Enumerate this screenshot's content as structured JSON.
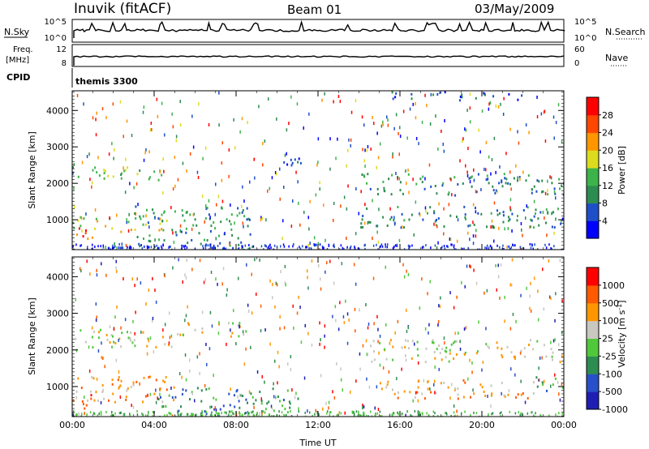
{
  "header": {
    "station": "Inuvik (fitACF)",
    "beam": "Beam 01",
    "date": "03/May/2009"
  },
  "panels": {
    "nsky": {
      "label": "N.Sky",
      "left_ticks": [
        "10^5",
        "10^0"
      ],
      "right_ticks": [
        "10^5",
        "10^0"
      ],
      "right_label": "N.Search"
    },
    "freq": {
      "label_line1": "Freq.",
      "label_line2": "[MHz]",
      "left_ticks": [
        "12",
        "8"
      ],
      "right_ticks": [
        "60",
        "0"
      ],
      "right_label": "Nave"
    },
    "cpid": {
      "label": "CPID",
      "value": "themis 3300"
    }
  },
  "chart_data": [
    {
      "type": "heatmap",
      "name": "power",
      "ylabel": "Slant Range [km]",
      "xlabel": "",
      "x_ticks": [
        "00:00",
        "04:00",
        "08:00",
        "12:00",
        "16:00",
        "20:00",
        "00:00"
      ],
      "xlim_hours": [
        0,
        24
      ],
      "y_ticks": [
        1000,
        2000,
        3000,
        4000
      ],
      "ylim_km": [
        180,
        4540
      ],
      "colorbar": {
        "label": "Power [dB]",
        "ticks": [
          "28",
          "24",
          "20",
          "16",
          "12",
          "8",
          "4"
        ],
        "colors": [
          "#0000ff",
          "#1e4fc8",
          "#2d8c50",
          "#3cb44b",
          "#dcdc1e",
          "#ff9600",
          "#ff4600",
          "#ff0000"
        ]
      },
      "regions": [
        {
          "t0": 0.0,
          "t1": 4.6,
          "r0": 2100,
          "r1": 2500,
          "level": 3
        },
        {
          "t0": 0.0,
          "t1": 4.8,
          "r0": 700,
          "r1": 1100,
          "level": 4
        },
        {
          "t0": 0.0,
          "t1": 1.0,
          "r0": 300,
          "r1": 800,
          "level": 6
        },
        {
          "t0": 3.0,
          "t1": 8.8,
          "r0": 200,
          "r1": 1400,
          "level": 2
        },
        {
          "t0": 10.0,
          "t1": 11.2,
          "r0": 2300,
          "r1": 2800,
          "level": 1
        },
        {
          "t0": 14.0,
          "t1": 24.0,
          "r0": 1700,
          "r1": 2300,
          "level": 2
        },
        {
          "t0": 14.0,
          "t1": 24.0,
          "r0": 800,
          "r1": 1400,
          "level": 2
        },
        {
          "t0": 15.5,
          "t1": 22.0,
          "r0": 4300,
          "r1": 4540,
          "level": 1
        }
      ]
    },
    {
      "type": "heatmap",
      "name": "velocity",
      "ylabel": "Slant Range [km]",
      "xlabel": "Time UT",
      "x_ticks": [
        "00:00",
        "04:00",
        "08:00",
        "12:00",
        "16:00",
        "20:00",
        "00:00"
      ],
      "xlim_hours": [
        0,
        24
      ],
      "y_ticks": [
        1000,
        2000,
        3000,
        4000
      ],
      "ylim_km": [
        180,
        4540
      ],
      "colorbar": {
        "label": "Velocity [m s",
        "label_sup": "-1",
        "label_end": "]",
        "ticks": [
          "1000",
          "500",
          "100",
          "25",
          "-25",
          "-100",
          "-500",
          "-1000"
        ],
        "colors": [
          "#1e1eb4",
          "#2850c8",
          "#2d8c50",
          "#50c83c",
          "#c8c8c0",
          "#ff9600",
          "#ff5a00",
          "#ff0000"
        ]
      },
      "regions": [
        {
          "t0": 0.0,
          "t1": 5.0,
          "r0": 2100,
          "r1": 2600,
          "level": 4
        },
        {
          "t0": 5.0,
          "t1": 8.5,
          "r0": 2400,
          "r1": 2800,
          "level": 4
        },
        {
          "t0": 0.0,
          "t1": 5.0,
          "r0": 600,
          "r1": 1300,
          "level": 5
        },
        {
          "t0": 0.0,
          "t1": 1.0,
          "r0": 300,
          "r1": 800,
          "level": 6
        },
        {
          "t0": 4.0,
          "t1": 11.0,
          "r0": 200,
          "r1": 1000,
          "level": 2
        },
        {
          "t0": 14.5,
          "t1": 24.0,
          "r0": 1700,
          "r1": 2300,
          "level": 4
        },
        {
          "t0": 15.0,
          "t1": 22.5,
          "r0": 700,
          "r1": 1200,
          "level": 5
        },
        {
          "t0": 22.5,
          "t1": 24.0,
          "r0": 900,
          "r1": 1300,
          "level": 2
        }
      ]
    }
  ]
}
